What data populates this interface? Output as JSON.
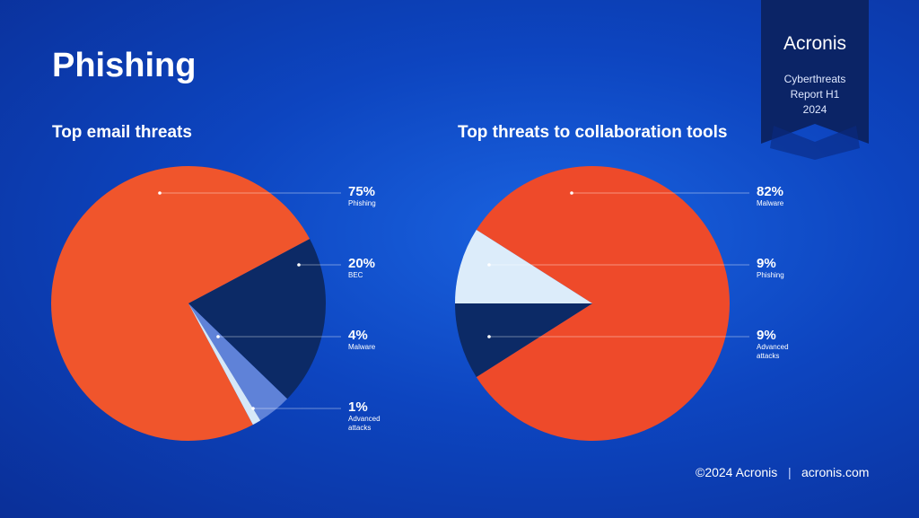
{
  "title": "Phishing",
  "badge": {
    "brand": "Acronis",
    "lines": [
      "Cyberthreats",
      "Report H1",
      "2024"
    ]
  },
  "footer": {
    "copyright": "©2024 Acronis",
    "site": "acronis.com"
  },
  "chart_data": [
    {
      "type": "pie",
      "title": "Top email threats",
      "categories": [
        "Phishing",
        "BEC",
        "Malware",
        "Advanced attacks"
      ],
      "values": [
        75,
        20,
        4,
        1
      ],
      "value_labels": [
        "75%",
        "20%",
        "4%",
        "1%"
      ],
      "colors": [
        "#f0552c",
        "#0c2a66",
        "#5f82d8",
        "#d6e8f8"
      ]
    },
    {
      "type": "pie",
      "title": "Top threats to collaboration tools",
      "categories": [
        "Malware",
        "Phishing",
        "Advanced attacks"
      ],
      "values": [
        82,
        9,
        9
      ],
      "value_labels": [
        "82%",
        "9%",
        "9%"
      ],
      "colors": [
        "#ee4a2a",
        "#dcecfa",
        "#0c2a66"
      ]
    }
  ]
}
